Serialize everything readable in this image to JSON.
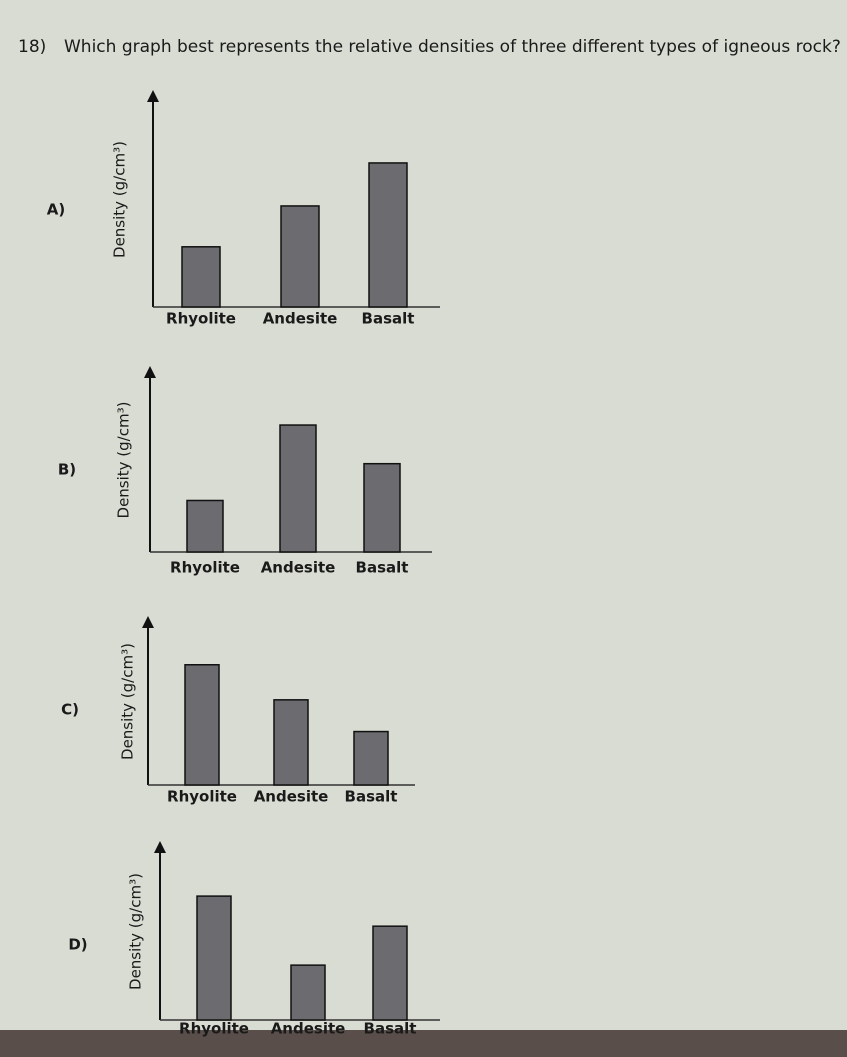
{
  "question": {
    "number": "18)",
    "text": "Which graph best represents the relative densities of three different types of igneous rock?"
  },
  "chart_data": [
    {
      "type": "bar",
      "label": "A)",
      "y_label": "Density (g/cm³)",
      "categories": [
        "Rhyolite",
        "Andesite",
        "Basalt"
      ],
      "values": [
        2.8,
        4.7,
        6.7
      ],
      "color": "#6b6b70",
      "ylim": [
        0,
        10
      ]
    },
    {
      "type": "bar",
      "label": "B)",
      "y_label": "Density (g/cm³)",
      "categories": [
        "Rhyolite",
        "Andesite",
        "Basalt"
      ],
      "values": [
        2.8,
        6.9,
        4.8
      ],
      "color": "#6b6b70",
      "ylim": [
        0,
        10
      ]
    },
    {
      "type": "bar",
      "label": "C)",
      "y_label": "Density (g/cm³)",
      "categories": [
        "Rhyolite",
        "Andesite",
        "Basalt"
      ],
      "values": [
        7.2,
        5.1,
        3.2
      ],
      "color": "#6b6b70",
      "ylim": [
        0,
        10
      ]
    },
    {
      "type": "bar",
      "label": "D)",
      "y_label": "Density (g/cm³)",
      "categories": [
        "Rhyolite",
        "Andesite",
        "Basalt"
      ],
      "values": [
        7.0,
        3.1,
        5.3
      ],
      "color": "#6b6b70",
      "ylim": [
        0,
        10
      ]
    }
  ]
}
